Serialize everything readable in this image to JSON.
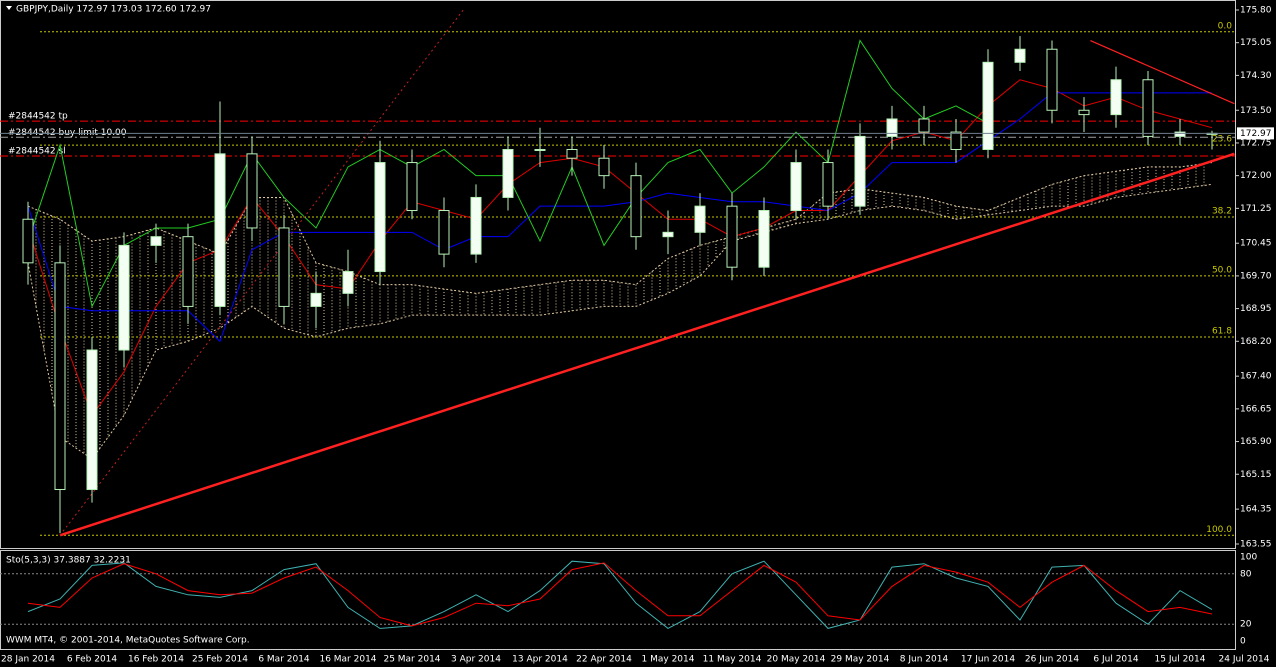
{
  "chart_data": {
    "type": "candlestick",
    "title": "GBPJPY,Daily  172.97 173.03 172.60 172.97",
    "ylim": [
      163.55,
      175.8
    ],
    "yticks": [
      {
        "value": 175.8,
        "label": "175.80"
      },
      {
        "value": 175.05,
        "label": "175.05"
      },
      {
        "value": 174.3,
        "label": "174.30"
      },
      {
        "value": 173.5,
        "label": "173.50"
      },
      {
        "value": 172.75,
        "label": "172.75"
      },
      {
        "value": 172.0,
        "label": "172.00"
      },
      {
        "value": 171.25,
        "label": "171.25"
      },
      {
        "value": 170.45,
        "label": "170.45"
      },
      {
        "value": 169.7,
        "label": "169.70"
      },
      {
        "value": 168.95,
        "label": "168.95"
      },
      {
        "value": 168.2,
        "label": "168.20"
      },
      {
        "value": 167.4,
        "label": "167.40"
      },
      {
        "value": 166.65,
        "label": "166.65"
      },
      {
        "value": 165.9,
        "label": "165.90"
      },
      {
        "value": 165.15,
        "label": "165.15"
      },
      {
        "value": 164.35,
        "label": "164.35"
      },
      {
        "value": 163.55,
        "label": "163.55"
      }
    ],
    "date_labels": [
      "28 Jan 2014",
      "6 Feb 2014",
      "16 Feb 2014",
      "25 Feb 2014",
      "6 Mar 2014",
      "16 Mar 2014",
      "25 Mar 2014",
      "3 Apr 2014",
      "13 Apr 2014",
      "22 Apr 2014",
      "1 May 2014",
      "11 May 2014",
      "20 May 2014",
      "29 May 2014",
      "8 Jun 2014",
      "17 Jun 2014",
      "26 Jun 2014",
      "6 Jul 2014",
      "15 Jul 2014",
      "24 Jul 2014"
    ],
    "open": [
      171.0,
      170.0,
      164.8,
      168.0,
      170.4,
      170.6,
      169.0,
      172.5,
      170.8,
      169.0,
      169.3,
      169.8,
      172.3,
      171.2,
      170.2,
      171.5,
      172.6,
      172.6,
      172.4,
      172.0,
      170.6,
      170.7,
      171.3,
      169.9,
      171.2,
      172.3,
      171.3,
      172.9,
      173.3,
      173.0,
      172.6,
      174.6,
      174.9,
      173.5,
      173.4,
      174.2,
      172.9,
      172.97
    ],
    "high": [
      171.4,
      170.4,
      168.3,
      170.7,
      170.9,
      170.9,
      173.7,
      172.9,
      171.1,
      169.8,
      170.3,
      172.8,
      172.6,
      171.5,
      171.8,
      172.9,
      173.1,
      172.9,
      172.7,
      172.3,
      171.2,
      171.6,
      171.6,
      171.5,
      172.6,
      172.6,
      173.2,
      173.6,
      173.6,
      173.3,
      174.9,
      175.2,
      175.1,
      173.8,
      174.5,
      174.4,
      173.3,
      173.03
    ],
    "low": [
      169.5,
      163.8,
      164.5,
      167.6,
      170.0,
      168.6,
      168.8,
      170.5,
      168.6,
      168.5,
      169.0,
      169.5,
      171.0,
      169.9,
      170.0,
      171.2,
      172.2,
      172.0,
      171.7,
      170.3,
      170.2,
      170.4,
      169.6,
      169.7,
      171.0,
      171.0,
      171.1,
      172.6,
      172.7,
      172.3,
      172.4,
      174.4,
      173.2,
      173.0,
      173.1,
      172.7,
      172.7,
      172.6
    ],
    "close": [
      170.0,
      164.8,
      168.0,
      170.4,
      170.6,
      169.0,
      172.5,
      170.8,
      169.0,
      169.3,
      169.8,
      172.3,
      171.2,
      170.2,
      171.5,
      172.6,
      172.6,
      172.4,
      172.0,
      170.6,
      170.7,
      171.3,
      169.9,
      171.2,
      172.3,
      171.3,
      172.9,
      173.3,
      173.0,
      172.6,
      174.6,
      174.9,
      173.5,
      173.4,
      174.2,
      172.9,
      173.0,
      172.97
    ],
    "bull_color": "#f4fff4",
    "bear_color": "#000000",
    "wick_color": "#b8f0b8",
    "series": [
      {
        "name": "Tenkan",
        "color": "#e00000",
        "values": [
          170.8,
          168.5,
          166.5,
          167.5,
          169.0,
          170.0,
          170.3,
          171.5,
          170.6,
          169.5,
          169.4,
          170.5,
          171.4,
          171.2,
          171.0,
          171.8,
          172.3,
          172.4,
          172.2,
          171.6,
          171.0,
          171.0,
          170.6,
          170.8,
          171.2,
          171.2,
          172.0,
          172.8,
          173.0,
          172.8,
          173.6,
          174.2,
          174.0,
          173.6,
          173.8,
          173.5,
          173.3,
          173.1
        ]
      },
      {
        "name": "Kijun",
        "color": "#0000ff",
        "values": [
          171.3,
          169.0,
          168.9,
          168.9,
          168.9,
          168.9,
          168.2,
          170.3,
          170.7,
          170.7,
          170.7,
          170.7,
          170.7,
          170.3,
          170.6,
          170.6,
          171.3,
          171.3,
          171.3,
          171.4,
          171.6,
          171.5,
          171.4,
          171.4,
          171.3,
          171.2,
          171.6,
          172.3,
          172.3,
          172.3,
          172.8,
          173.3,
          173.9,
          173.9,
          173.9,
          173.9,
          173.9,
          173.9
        ]
      },
      {
        "name": "Chikou",
        "color": "#22cc22",
        "values": [
          170.5,
          172.7,
          169.0,
          170.4,
          170.8,
          170.8,
          171.0,
          172.5,
          171.5,
          170.8,
          172.2,
          172.6,
          172.2,
          172.6,
          172.0,
          172.0,
          170.5,
          172.2,
          170.4,
          171.5,
          172.3,
          172.6,
          171.6,
          172.2,
          173.0,
          172.3,
          175.1,
          174.0,
          173.3,
          173.6,
          173.2,
          null,
          null,
          null,
          null,
          null,
          null,
          null
        ]
      }
    ],
    "cloud": {
      "color": "#e0c8a0",
      "span_a": [
        171.3,
        171.0,
        170.5,
        170.6,
        170.8,
        170.5,
        170.2,
        171.5,
        171.5,
        170.0,
        169.8,
        169.5,
        169.5,
        169.4,
        169.3,
        169.4,
        169.5,
        169.6,
        169.6,
        169.5,
        170.1,
        170.4,
        170.6,
        170.8,
        171.0,
        171.6,
        171.7,
        171.6,
        171.5,
        171.3,
        171.2,
        171.5,
        171.8,
        172.0,
        172.1,
        172.2,
        172.2,
        172.3
      ],
      "span_b": [
        170.0,
        166.0,
        165.5,
        166.5,
        168.0,
        168.2,
        168.5,
        169.0,
        168.5,
        168.3,
        168.5,
        168.6,
        168.8,
        168.8,
        168.8,
        168.8,
        168.8,
        168.9,
        169.0,
        169.0,
        169.3,
        169.7,
        170.5,
        170.7,
        170.9,
        171.0,
        171.2,
        171.3,
        171.2,
        171.0,
        171.1,
        171.2,
        171.3,
        171.3,
        171.5,
        171.6,
        171.7,
        171.8
      ]
    },
    "fib_color": "#c8c800",
    "fib_levels": [
      {
        "label": "0.0",
        "price": 175.3
      },
      {
        "label": "23.6",
        "price": 172.7
      },
      {
        "label": "38.2",
        "price": 171.05
      },
      {
        "label": "50.0",
        "price": 169.7
      },
      {
        "label": "61.8",
        "price": 168.3
      },
      {
        "label": "100.0",
        "price": 163.75
      }
    ],
    "orders": [
      {
        "label": "#2844542 tp",
        "price": 173.25,
        "color": "#ff0000"
      },
      {
        "label": "#2844542 buy limit 10.00",
        "price": 172.88,
        "color": "#a0a0a0"
      },
      {
        "label": "#2844542 sl",
        "price": 172.45,
        "color": "#ff0000"
      }
    ],
    "trendlines": [
      {
        "from": [
          1,
          163.75
        ],
        "to": [
          37.7,
          172.5
        ],
        "color": "#ff2020",
        "width": 2.5
      },
      {
        "from": [
          33.2,
          175.1
        ],
        "to": [
          37.7,
          173.65
        ],
        "color": "#ff2020",
        "width": 1.2
      },
      {
        "from": [
          1,
          163.75
        ],
        "to": [
          13.6,
          175.8
        ],
        "color": "#c02020",
        "width": 1,
        "dotted": true
      }
    ],
    "current_price": 172.97,
    "stochastic": {
      "title": "Sto(5,3,3) 37.3887 32.2231",
      "ylim": [
        0,
        100
      ],
      "yticks": [
        100,
        80,
        20,
        0
      ],
      "series": [
        {
          "name": "Main",
          "color": "#40b0b0",
          "values": [
            35,
            50,
            90,
            93,
            65,
            55,
            52,
            60,
            85,
            92,
            40,
            15,
            18,
            35,
            55,
            35,
            60,
            95,
            92,
            45,
            15,
            35,
            80,
            95,
            55,
            15,
            25,
            88,
            92,
            75,
            65,
            25,
            88,
            90,
            45,
            20,
            60,
            37.4
          ]
        },
        {
          "name": "Signal",
          "color": "#ff0000",
          "values": [
            45,
            40,
            75,
            92,
            80,
            60,
            55,
            57,
            75,
            88,
            60,
            28,
            18,
            28,
            45,
            42,
            50,
            85,
            93,
            60,
            30,
            30,
            60,
            90,
            70,
            30,
            25,
            65,
            90,
            82,
            70,
            40,
            70,
            90,
            60,
            35,
            40,
            32.2
          ]
        }
      ]
    },
    "copyright": "WWM MT4, © 2001-2014, MetaQuotes Software Corp."
  }
}
